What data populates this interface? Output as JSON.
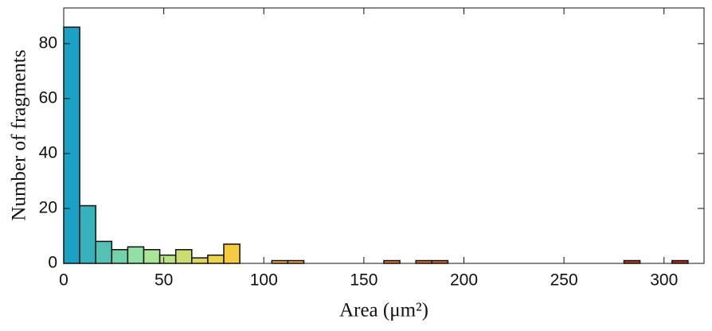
{
  "chart_data": {
    "type": "histogram",
    "xlabel": "Area (μm²)",
    "ylabel": "Number of fragments",
    "bins": [
      0,
      8,
      16,
      24,
      32,
      40,
      48,
      56,
      64,
      72,
      80,
      88,
      96,
      104,
      112,
      120,
      128,
      136,
      144,
      152,
      160,
      168,
      176,
      184,
      192,
      200,
      208,
      216,
      224,
      232,
      240,
      248,
      256,
      264,
      272,
      280,
      288,
      296,
      304,
      312
    ],
    "values": [
      86,
      21,
      8,
      5,
      6,
      5,
      3,
      5,
      2,
      3,
      7,
      0,
      0,
      1,
      1,
      0,
      0,
      0,
      0,
      0,
      1,
      0,
      1,
      1,
      0,
      0,
      0,
      0,
      0,
      0,
      0,
      0,
      0,
      0,
      0,
      1,
      0,
      0,
      1
    ],
    "colormap": [
      "#0a9ac8",
      "#a0e8a0",
      "#f5d042",
      "#f0a040",
      "#e47a34",
      "#d86030",
      "#d04c24",
      "#c83c1c",
      "#b82a10"
    ],
    "xlim": [
      0,
      320
    ],
    "ylim": [
      0,
      93
    ],
    "xticks": [
      0,
      50,
      100,
      150,
      200,
      250,
      300
    ],
    "yticks": [
      0,
      20,
      40,
      60,
      80
    ]
  }
}
